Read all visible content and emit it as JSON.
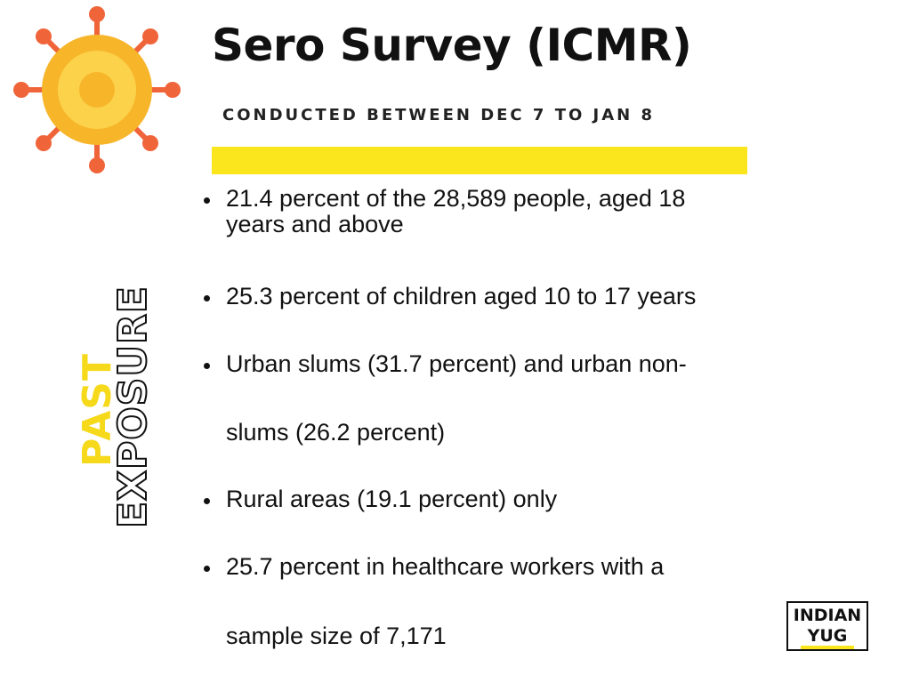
{
  "header": {
    "title": "Sero Survey (ICMR)",
    "subtitle": "CONDUCTED BETWEEN DEC 7 TO JAN 8"
  },
  "side": [
    "PAST",
    "EXPOSURE"
  ],
  "bullets": [
    {
      "lines": [
        "21.4 percent of the 28,589 people, aged 18",
        "years and above"
      ]
    },
    {
      "lines": [
        "25.3 percent of children aged 10 to 17 years"
      ]
    },
    {
      "lines": [
        "Urban slums (31.7 percent) and urban non-",
        "slums (26.2 percent)"
      ]
    },
    {
      "lines": [
        "Rural areas (19.1 percent) only"
      ]
    },
    {
      "lines": [
        "25.7 percent in healthcare workers with a",
        "sample size of 7,171"
      ]
    }
  ],
  "logo": [
    "INDIAN",
    "YUG"
  ]
}
